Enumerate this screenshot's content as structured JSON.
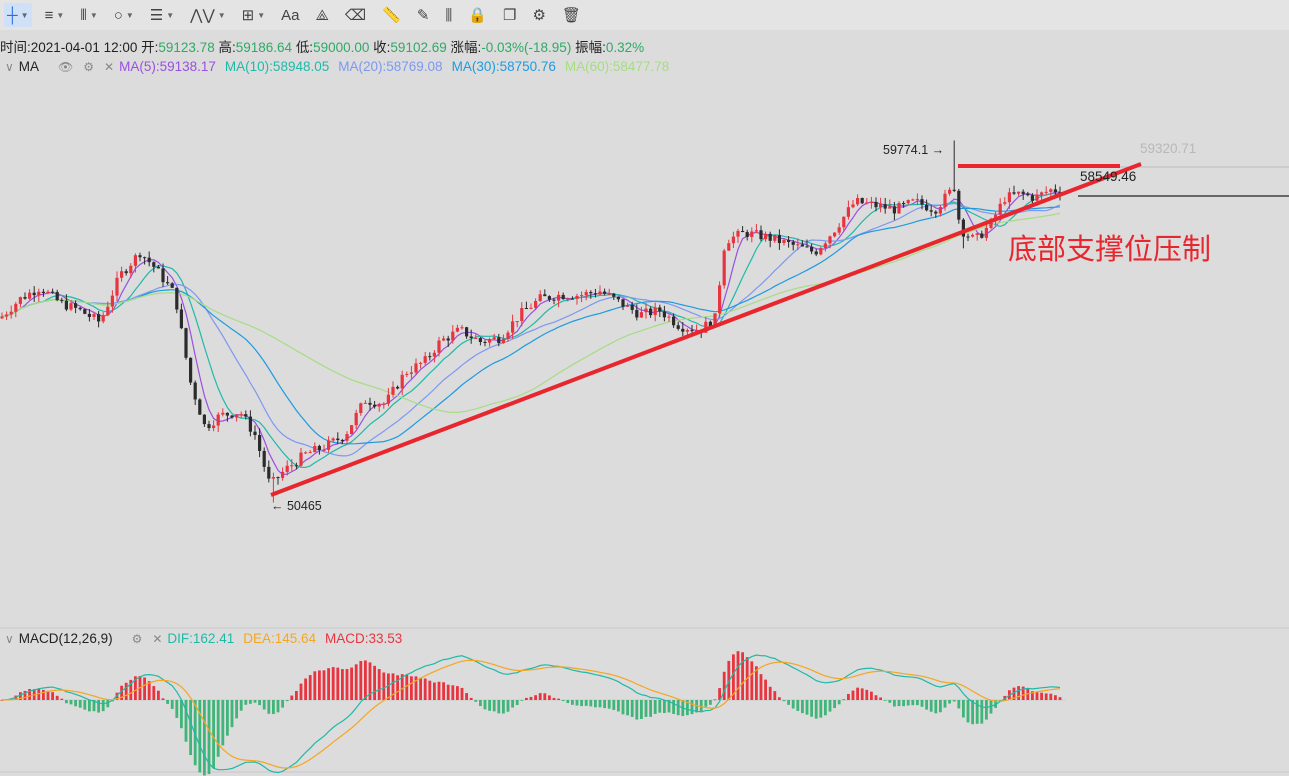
{
  "toolbar": {
    "tools": [
      {
        "name": "crosshair-icon",
        "glyph": "┼",
        "dropdown": true,
        "active": true
      },
      {
        "name": "horizontal-lines-icon",
        "glyph": "≡",
        "dropdown": true
      },
      {
        "name": "vertical-lines-icon",
        "glyph": "⦀",
        "dropdown": true
      },
      {
        "name": "circle-icon",
        "glyph": "○",
        "dropdown": true
      },
      {
        "name": "fib-lines-icon",
        "glyph": "☰",
        "dropdown": true
      },
      {
        "name": "wave-icon",
        "glyph": "⋀⋁",
        "dropdown": true
      },
      {
        "name": "measure-icon",
        "glyph": "⊞",
        "dropdown": true
      },
      {
        "name": "text-icon",
        "glyph": "Aa",
        "dropdown": false
      },
      {
        "name": "pattern-icon",
        "glyph": "⟁",
        "dropdown": false
      },
      {
        "name": "eraser-icon",
        "glyph": "⌫",
        "dropdown": false
      },
      {
        "name": "ruler-icon",
        "glyph": "📏",
        "dropdown": false
      },
      {
        "name": "pen-icon",
        "glyph": "✎",
        "dropdown": false
      },
      {
        "name": "candles-icon",
        "glyph": "⫼",
        "dropdown": false
      },
      {
        "name": "lock-icon",
        "glyph": "🔒",
        "dropdown": false
      },
      {
        "name": "copy-icon",
        "glyph": "❐",
        "dropdown": false
      },
      {
        "name": "settings-icon",
        "glyph": "⚙",
        "dropdown": false
      },
      {
        "name": "trash-icon",
        "glyph": "🗑",
        "dropdown": false
      }
    ]
  },
  "info": {
    "time_label": "时间:",
    "time": "2021-04-01 12:00",
    "open_label": "开:",
    "open": "59123.78",
    "high_label": "高:",
    "high": "59186.64",
    "low_label": "低:",
    "low": "59000.00",
    "close_label": "收:",
    "close": "59102.69",
    "change_label": "涨幅:",
    "change": "-0.03%(-18.95)",
    "amp_label": "振幅:",
    "amp": "0.32%"
  },
  "ma": {
    "title": "MA",
    "items": [
      {
        "text": "MA(5):59138.17",
        "color": "#9b4fe0"
      },
      {
        "text": "MA(10):58948.05",
        "color": "#1fb9a8"
      },
      {
        "text": "MA(20):58769.08",
        "color": "#7d98f0"
      },
      {
        "text": "MA(30):58750.76",
        "color": "#1e9be0"
      },
      {
        "text": "MA(60):58477.78",
        "color": "#a6dd83"
      }
    ]
  },
  "macd": {
    "title": "MACD(12,26,9)",
    "dif": "DIF:162.41",
    "dea": "DEA:145.64",
    "macd": "MACD:33.53",
    "dif_color": "#1fb9a8",
    "dea_color": "#f5a623",
    "macd_color": "#e8343f"
  },
  "annotations": {
    "high_label": "59774.1 →",
    "low_label": "← 50465",
    "right_top": "59320.71",
    "right_line": "58549.46",
    "text": "底部支撑位压制"
  },
  "chart_data": {
    "type": "candlestick",
    "timeframe_note": "BTC hourly candles ending 2021-04-01 12:00",
    "price_range": [
      49500,
      60300
    ],
    "key_levels": {
      "high": 59774.1,
      "low": 50465,
      "resistance": 58549.46,
      "ref": 59320.71
    },
    "close_path": [
      [
        0,
        55200
      ],
      [
        20,
        55700
      ],
      [
        40,
        56000
      ],
      [
        60,
        55600
      ],
      [
        80,
        55400
      ],
      [
        100,
        55100
      ],
      [
        120,
        56300
      ],
      [
        140,
        56900
      ],
      [
        155,
        56500
      ],
      [
        175,
        55800
      ],
      [
        190,
        53600
      ],
      [
        205,
        52400
      ],
      [
        220,
        52700
      ],
      [
        240,
        52800
      ],
      [
        255,
        52200
      ],
      [
        270,
        50900
      ],
      [
        285,
        51300
      ],
      [
        305,
        51700
      ],
      [
        325,
        51900
      ],
      [
        345,
        52200
      ],
      [
        365,
        53100
      ],
      [
        385,
        53000
      ],
      [
        405,
        53800
      ],
      [
        425,
        54100
      ],
      [
        440,
        54600
      ],
      [
        460,
        54900
      ],
      [
        480,
        54600
      ],
      [
        500,
        54700
      ],
      [
        520,
        55300
      ],
      [
        540,
        55700
      ],
      [
        560,
        55800
      ],
      [
        580,
        55800
      ],
      [
        600,
        55900
      ],
      [
        620,
        55600
      ],
      [
        640,
        55300
      ],
      [
        660,
        55400
      ],
      [
        680,
        55000
      ],
      [
        700,
        54900
      ],
      [
        715,
        55200
      ],
      [
        725,
        57200
      ],
      [
        745,
        57400
      ],
      [
        765,
        57300
      ],
      [
        790,
        57100
      ],
      [
        815,
        56900
      ],
      [
        835,
        57500
      ],
      [
        855,
        58200
      ],
      [
        875,
        58100
      ],
      [
        895,
        58000
      ],
      [
        915,
        58200
      ],
      [
        935,
        58000
      ],
      [
        955,
        58600
      ],
      [
        960,
        57500
      ],
      [
        975,
        57200
      ],
      [
        990,
        57600
      ],
      [
        1005,
        58300
      ],
      [
        1020,
        58400
      ],
      [
        1035,
        58300
      ],
      [
        1050,
        58500
      ],
      [
        1062,
        58500
      ]
    ]
  }
}
